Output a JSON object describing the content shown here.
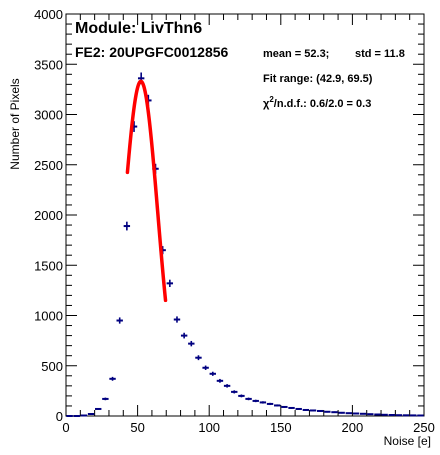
{
  "chart_data": {
    "type": "scatter",
    "title": "Module: LivThn6",
    "subtitle": "FE2: 20UPGFC0012856",
    "xlabel": "Noise [e]",
    "ylabel": "Number of Pixels",
    "xlim": [
      0,
      250
    ],
    "ylim": [
      0,
      4000
    ],
    "x_ticks": [
      0,
      50,
      100,
      150,
      200,
      250
    ],
    "y_ticks": [
      0,
      500,
      1000,
      1500,
      2000,
      2500,
      3000,
      3500,
      4000
    ],
    "grid": false,
    "stats": {
      "mean_text": "mean = 52.3;",
      "std_text": "std = 11.8",
      "fit_range_text": "Fit range: (42.9, 69.5)",
      "chi2_symbol": "χ",
      "chi2_sup": "2",
      "chi2_rest": "/n.d.f.: 0.6/2.0 = 0.3"
    },
    "series": [
      {
        "type": "scatter",
        "color": "#000080",
        "x": [
          2.5,
          7.5,
          12.5,
          17.5,
          22.5,
          27.5,
          32.5,
          37.5,
          42.5,
          47.5,
          52.5,
          57.5,
          62.5,
          67.5,
          72.5,
          77.5,
          82.5,
          87.5,
          92.5,
          97.5,
          102.5,
          107.5,
          112.5,
          117.5,
          122.5,
          127.5,
          132.5,
          137.5,
          142.5,
          147.5,
          152.5,
          157.5,
          162.5,
          167.5,
          172.5,
          177.5,
          182.5,
          187.5,
          192.5,
          197.5,
          202.5,
          207.5,
          212.5,
          217.5,
          222.5,
          227.5,
          232.5,
          237.5,
          242.5,
          247.5
        ],
        "y": [
          0,
          0,
          5,
          20,
          70,
          170,
          370,
          950,
          1890,
          2880,
          3360,
          3140,
          2460,
          1650,
          1320,
          960,
          800,
          720,
          580,
          480,
          420,
          350,
          300,
          240,
          200,
          170,
          150,
          135,
          120,
          105,
          90,
          80,
          70,
          60,
          55,
          50,
          42,
          38,
          32,
          28,
          25,
          22,
          18,
          15,
          12,
          10,
          8,
          7,
          6,
          5
        ]
      },
      {
        "type": "line",
        "name": "gaussian fit",
        "color": "#ff0000",
        "function": "gauss",
        "amplitude": 3330,
        "mean": 52.3,
        "sigma": 11.8,
        "x_range": [
          42.9,
          69.5
        ]
      }
    ]
  }
}
